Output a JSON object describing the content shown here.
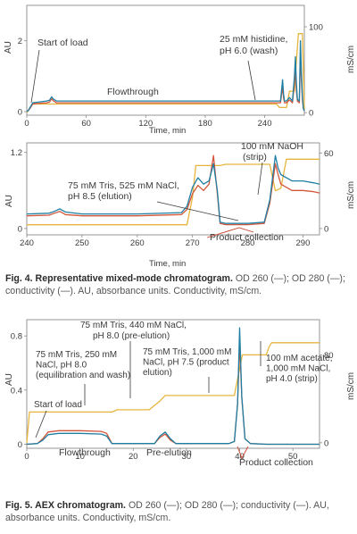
{
  "colors": {
    "od260": "#1f7fa3",
    "od280": "#d2563a",
    "conductivity": "#e8b53c",
    "axis": "#8a8a8a",
    "text": "#3a3a3a"
  },
  "fig4": {
    "caption_title": "Fig. 4. Representative mixed-mode chromatogram.",
    "caption_body": " OD 260 (—); OD 280 (—); conductivity (—). AU, absorbance units. Conductivity, mS/cm."
  },
  "fig5": {
    "caption_title": "Fig. 5. AEX chromatogram.",
    "caption_body": " OD 260 (—); OD 280 (—); conductivity (—). AU, absorbance units. Conductivity, mS/cm."
  },
  "chart_data": [
    {
      "id": "fig4-top",
      "type": "line",
      "xlabel": "Time, min",
      "ylabel": "AU",
      "y2label": "mS/cm",
      "xlim": [
        0,
        280
      ],
      "ylim": [
        -0.1,
        3.0
      ],
      "y2lim": [
        -3,
        125
      ],
      "xticks": [
        "0",
        "60",
        "120",
        "180",
        "240"
      ],
      "xtick_values": [
        0,
        60,
        120,
        180,
        240
      ],
      "yticks": [
        "0",
        "2"
      ],
      "ytick_values": [
        0,
        2
      ],
      "y2ticks": [
        "0",
        "100"
      ],
      "y2tick_values": [
        0,
        100
      ],
      "annotations": [
        "Start of load",
        "25 mM histidine,\npH 6.0 (wash)",
        "Flowthrough"
      ],
      "series": [
        {
          "key": "od260",
          "axis": "left",
          "x": [
            0,
            2,
            4,
            6,
            20,
            23,
            25,
            27,
            30,
            60,
            120,
            180,
            240,
            252,
            256,
            258,
            259,
            260,
            262,
            265,
            268,
            270,
            271,
            272,
            273,
            275,
            276,
            277,
            278,
            279,
            280
          ],
          "y": [
            0,
            0.05,
            0.15,
            0.25,
            0.3,
            0.32,
            0.42,
            0.35,
            0.3,
            0.3,
            0.3,
            0.3,
            0.3,
            0.3,
            0.3,
            0.9,
            0.5,
            0.3,
            0.3,
            0.4,
            0.3,
            1.0,
            1.55,
            0.8,
            0.35,
            0.3,
            2.0,
            1.1,
            0.45,
            0.1,
            0.02
          ]
        },
        {
          "key": "od280",
          "axis": "left",
          "x": [
            0,
            2,
            4,
            6,
            20,
            23,
            25,
            27,
            30,
            60,
            120,
            180,
            240,
            252,
            256,
            258,
            259,
            260,
            262,
            265,
            268,
            270,
            271,
            272,
            273,
            275,
            276,
            277,
            278,
            279,
            280
          ],
          "y": [
            0,
            0.04,
            0.12,
            0.22,
            0.25,
            0.27,
            0.36,
            0.3,
            0.25,
            0.25,
            0.25,
            0.25,
            0.25,
            0.25,
            0.25,
            0.7,
            0.4,
            0.25,
            0.25,
            0.33,
            0.25,
            0.8,
            1.25,
            0.6,
            0.3,
            0.25,
            1.6,
            0.9,
            0.35,
            0.08,
            0.02
          ]
        },
        {
          "key": "conductivity",
          "axis": "right",
          "x": [
            0,
            3,
            6,
            240,
            252,
            255,
            262,
            265,
            270,
            272,
            274,
            278,
            280
          ],
          "y": [
            0,
            5,
            10,
            10,
            10,
            6,
            6,
            25,
            25,
            60,
            92,
            92,
            4
          ]
        }
      ]
    },
    {
      "id": "fig4-bottom",
      "type": "line",
      "xlabel": "Time, min",
      "ylabel": "AU",
      "y2label": "mS/cm",
      "xlim": [
        240,
        293
      ],
      "ylim": [
        -0.1,
        1.35
      ],
      "y2lim": [
        -5,
        68
      ],
      "xticks": [
        "240",
        "250",
        "260",
        "270",
        "280",
        "290"
      ],
      "xtick_values": [
        240,
        250,
        260,
        270,
        280,
        290
      ],
      "yticks": [
        "0",
        "1.2"
      ],
      "ytick_values": [
        0,
        1.2
      ],
      "y2ticks": [
        "0",
        "60"
      ],
      "y2tick_values": [
        0,
        60
      ],
      "annotations": [
        "100 mM NaOH\n(strip)",
        "75 mM Tris, 525 mM NaCl,\npH 8.5 (elution)",
        "Product collection"
      ],
      "series": [
        {
          "key": "od260",
          "axis": "left",
          "x": [
            240,
            244,
            245,
            246,
            247,
            250,
            260,
            268,
            269,
            270,
            271,
            272,
            273,
            273.8,
            274.5,
            275,
            276,
            280,
            283,
            284,
            285,
            285.5,
            286,
            288,
            290,
            292,
            293
          ],
          "y": [
            0.23,
            0.24,
            0.27,
            0.31,
            0.26,
            0.23,
            0.23,
            0.25,
            0.35,
            0.65,
            0.8,
            0.7,
            0.75,
            1.02,
            0.6,
            0.1,
            0.08,
            0.08,
            0.1,
            0.45,
            1.15,
            0.95,
            0.85,
            0.75,
            0.75,
            0.72,
            0.7
          ]
        },
        {
          "key": "od280",
          "axis": "left",
          "x": [
            240,
            244,
            245,
            246,
            247,
            250,
            260,
            268,
            269,
            270,
            271,
            272,
            273,
            273.8,
            274.5,
            275,
            276,
            280,
            283,
            284,
            285,
            285.5,
            286,
            288,
            290,
            292,
            293
          ],
          "y": [
            0.2,
            0.21,
            0.24,
            0.27,
            0.22,
            0.2,
            0.2,
            0.22,
            0.3,
            0.55,
            0.68,
            0.6,
            0.7,
            1.15,
            0.55,
            0.08,
            0.06,
            0.06,
            0.08,
            0.4,
            1.02,
            0.85,
            0.7,
            0.6,
            0.6,
            0.58,
            0.56
          ]
        },
        {
          "key": "conductivity",
          "axis": "right",
          "x": [
            240,
            268,
            269,
            270,
            270.6,
            275,
            276,
            284,
            285,
            286,
            287,
            293
          ],
          "y": [
            3,
            3,
            3,
            25,
            50,
            50,
            51,
            51,
            30,
            32,
            55,
            55
          ]
        }
      ]
    },
    {
      "id": "fig5",
      "type": "line",
      "xlabel": "",
      "ylabel": "AU",
      "y2label": "mS/cm",
      "xlim": [
        0,
        55
      ],
      "ylim": [
        -0.03,
        0.92
      ],
      "y2lim": [
        -5,
        112
      ],
      "xticks": [
        "0",
        "10",
        "20",
        "30",
        "40",
        "50"
      ],
      "xtick_values": [
        0,
        10,
        20,
        30,
        40,
        50
      ],
      "yticks": [
        "0",
        "0.4",
        "0.8"
      ],
      "ytick_values": [
        0,
        0.4,
        0.8
      ],
      "y2ticks": [
        "0",
        "80"
      ],
      "y2tick_values": [
        0,
        80
      ],
      "annotations": [
        "75 mM Tris, 440 mM NaCl,\npH 8.0 (pre-elution)",
        "75 mM Tris, 250 mM\nNaCl, pH 8.0\n(equilibration and wash)",
        "75 mM Tris, 1,000 mM\nNaCl, pH 7.5 (product\nelution)",
        "100 mM acetate,\n1,000 mM NaCl,\npH 4.0 (strip)",
        "Start of load",
        "Flowthrough",
        "Pre-elution",
        "Product collection"
      ],
      "series": [
        {
          "key": "od260",
          "axis": "left",
          "x": [
            0,
            2,
            3,
            4,
            6,
            10,
            14,
            15,
            16,
            24,
            25,
            26,
            27,
            28,
            38,
            39,
            39.6,
            40,
            40.4,
            41,
            42,
            45,
            55
          ],
          "y": [
            0,
            0.005,
            0.03,
            0.07,
            0.08,
            0.08,
            0.075,
            0.06,
            0.005,
            0.005,
            0.06,
            0.09,
            0.04,
            0.005,
            0.005,
            0.02,
            0.3,
            0.86,
            0.35,
            0.04,
            0.005,
            0,
            0
          ]
        },
        {
          "key": "od280",
          "axis": "left",
          "x": [
            0,
            2,
            3,
            4,
            6,
            10,
            14,
            15,
            16,
            24,
            25,
            26,
            27,
            28,
            38,
            39,
            39.6,
            40,
            40.4,
            41,
            42,
            45,
            55
          ],
          "y": [
            0,
            0.005,
            0.04,
            0.09,
            0.1,
            0.1,
            0.095,
            0.08,
            0.005,
            0.005,
            0.05,
            0.075,
            0.03,
            0.005,
            0.005,
            0.02,
            0.3,
            0.75,
            0.35,
            0.04,
            0.005,
            0,
            0
          ]
        },
        {
          "key": "conductivity",
          "axis": "right",
          "x": [
            0,
            0.5,
            6,
            9,
            16,
            17,
            23,
            25,
            26,
            38,
            39,
            40.5,
            45,
            45.5,
            46,
            55
          ],
          "y": [
            0,
            28,
            28,
            28,
            28,
            30,
            30,
            38,
            43,
            43,
            43,
            80,
            80,
            87,
            91,
            91
          ]
        }
      ]
    }
  ]
}
